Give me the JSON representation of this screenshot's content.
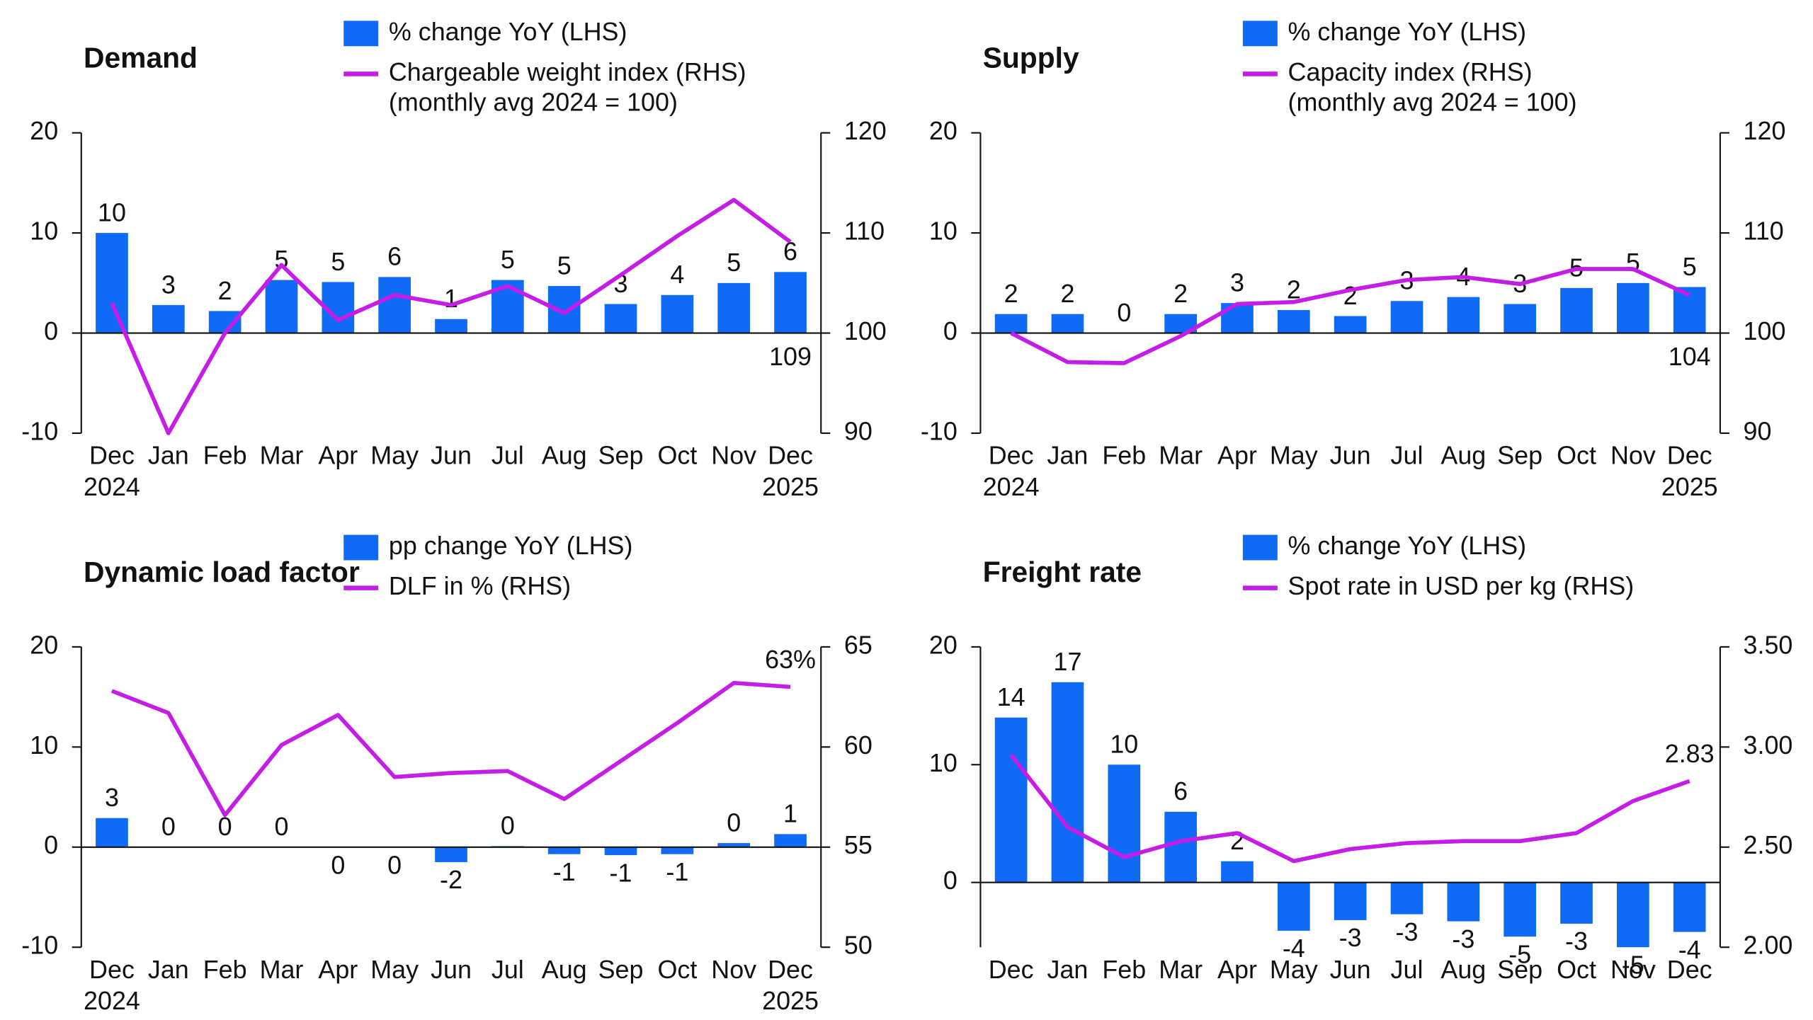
{
  "chart_data": [
    {
      "type": "combo",
      "title": "Demand",
      "categories": [
        "Dec",
        "Jan",
        "Feb",
        "Mar",
        "Apr",
        "May",
        "Jun",
        "Jul",
        "Aug",
        "Sep",
        "Oct",
        "Nov",
        "Dec"
      ],
      "category_sublabels": [
        "2024",
        null,
        null,
        null,
        null,
        null,
        null,
        null,
        null,
        null,
        null,
        null,
        "2025"
      ],
      "ylim": [
        -10,
        20
      ],
      "yticks": [
        -10,
        0,
        10,
        20
      ],
      "y2lim": [
        90,
        120
      ],
      "y2ticks": [
        90,
        100,
        110,
        120
      ],
      "legend_note": "(monthly avg 2024 = 100)",
      "series": [
        {
          "name": "% change YoY (LHS)",
          "kind": "bar",
          "color": "#0f6bf5",
          "values": [
            10,
            2.8,
            2.2,
            5.3,
            5.1,
            5.6,
            1.4,
            5.3,
            4.7,
            2.9,
            3.8,
            5.0,
            6.1
          ],
          "value_labels": [
            "10",
            "3",
            "2",
            "5",
            "5",
            "6",
            "1",
            "5",
            "5",
            "3",
            "4",
            "5",
            "6"
          ]
        },
        {
          "name": "Chargeable weight index (RHS)",
          "kind": "line",
          "axis": "y2",
          "color": "#c41ee6",
          "values": [
            103,
            90,
            100,
            106.8,
            101.3,
            103.8,
            102.8,
            104.7,
            102,
            105.8,
            109.7,
            113.3,
            109.1
          ],
          "value_labels": [
            null,
            null,
            null,
            null,
            null,
            null,
            null,
            null,
            null,
            null,
            null,
            null,
            "109"
          ]
        }
      ]
    },
    {
      "type": "combo",
      "title": "Supply",
      "categories": [
        "Dec",
        "Jan",
        "Feb",
        "Mar",
        "Apr",
        "May",
        "Jun",
        "Jul",
        "Aug",
        "Sep",
        "Oct",
        "Nov",
        "Dec"
      ],
      "category_sublabels": [
        "2024",
        null,
        null,
        null,
        null,
        null,
        null,
        null,
        null,
        null,
        null,
        null,
        "2025"
      ],
      "ylim": [
        -10,
        20
      ],
      "yticks": [
        -10,
        0,
        10,
        20
      ],
      "y2lim": [
        90,
        120
      ],
      "y2ticks": [
        90,
        100,
        110,
        120
      ],
      "legend_note": "(monthly avg 2024 = 100)",
      "series": [
        {
          "name": "% change YoY (LHS)",
          "kind": "bar",
          "color": "#0f6bf5",
          "values": [
            1.9,
            1.9,
            0,
            1.9,
            3.0,
            2.3,
            1.7,
            3.2,
            3.6,
            2.9,
            4.5,
            5.0,
            4.6
          ],
          "value_labels": [
            "2",
            "2",
            "0",
            "2",
            "3",
            "2",
            "2",
            "3",
            "4",
            "3",
            "5",
            "5",
            "5"
          ]
        },
        {
          "name": "Capacity index (RHS)",
          "kind": "line",
          "axis": "y2",
          "color": "#c41ee6",
          "values": [
            100,
            97.1,
            97,
            99.7,
            102.9,
            103.1,
            104.3,
            105.3,
            105.6,
            104.9,
            106.4,
            106.4,
            103.8
          ],
          "value_labels": [
            null,
            null,
            null,
            null,
            null,
            null,
            null,
            null,
            null,
            null,
            null,
            null,
            "104"
          ]
        }
      ]
    },
    {
      "type": "combo",
      "title": "Dynamic load factor",
      "categories": [
        "Dec",
        "Jan",
        "Feb",
        "Mar",
        "Apr",
        "May",
        "Jun",
        "Jul",
        "Aug",
        "Sep",
        "Oct",
        "Nov",
        "Dec"
      ],
      "category_sublabels": [
        "2024",
        null,
        null,
        null,
        null,
        null,
        null,
        null,
        null,
        null,
        null,
        null,
        "2025"
      ],
      "ylim": [
        -10,
        20
      ],
      "yticks": [
        -10,
        0,
        10,
        20
      ],
      "y2lim": [
        50,
        65
      ],
      "y2ticks": [
        50,
        55,
        60,
        65
      ],
      "series": [
        {
          "name": "pp change YoY (LHS)",
          "kind": "bar",
          "color": "#0f6bf5",
          "values": [
            2.9,
            0,
            0,
            0,
            -0.05,
            -0.05,
            -1.5,
            0.1,
            -0.7,
            -0.8,
            -0.7,
            0.4,
            1.3
          ],
          "value_labels": [
            "3",
            "0",
            "0",
            "0",
            "0",
            "0",
            "-2",
            "0",
            "-1",
            "-1",
            "-1",
            "0",
            "1"
          ]
        },
        {
          "name": "DLF in % (RHS)",
          "kind": "line",
          "axis": "y2",
          "color": "#c41ee6",
          "values": [
            62.8,
            61.7,
            56.6,
            60.1,
            61.6,
            58.5,
            58.7,
            58.8,
            57.4,
            59.3,
            61.2,
            63.2,
            63.0
          ],
          "value_labels": [
            null,
            null,
            null,
            null,
            null,
            null,
            null,
            null,
            null,
            null,
            null,
            null,
            "63%"
          ]
        }
      ]
    },
    {
      "type": "combo",
      "title": "Freight rate",
      "categories": [
        "Dec",
        "Jan",
        "Feb",
        "Mar",
        "Apr",
        "May",
        "Jun",
        "Jul",
        "Aug",
        "Sep",
        "Oct",
        "Nov",
        "Dec"
      ],
      "ylim": [
        -5.5,
        20
      ],
      "yticks": [
        0,
        10,
        20
      ],
      "y2lim": [
        2,
        3.5
      ],
      "y2ticks": [
        {
          "value": 2,
          "label": "2.00"
        },
        {
          "value": 2.5,
          "label": "2.50"
        },
        {
          "value": 3,
          "label": "3.00"
        },
        {
          "value": 3.5,
          "label": "3.50"
        }
      ],
      "series": [
        {
          "name": "% change YoY (LHS)",
          "kind": "bar",
          "color": "#0f6bf5",
          "values": [
            14,
            17,
            10,
            6,
            1.8,
            -4.1,
            -3.2,
            -2.7,
            -3.3,
            -4.6,
            -3.5,
            -5.5,
            -4.2
          ],
          "value_labels": [
            "14",
            "17",
            "10",
            "6",
            "2",
            "-4",
            "-3",
            "-3",
            "-3",
            "-5",
            "-3",
            "-5",
            "-4"
          ]
        },
        {
          "name": "Spot rate in USD per kg (RHS)",
          "kind": "line",
          "axis": "y2",
          "color": "#c41ee6",
          "values": [
            2.96,
            2.6,
            2.45,
            2.53,
            2.57,
            2.43,
            2.49,
            2.52,
            2.53,
            2.53,
            2.57,
            2.73,
            2.83
          ],
          "value_labels": [
            null,
            null,
            null,
            null,
            null,
            null,
            null,
            null,
            null,
            null,
            null,
            null,
            "2.83"
          ]
        }
      ]
    }
  ]
}
